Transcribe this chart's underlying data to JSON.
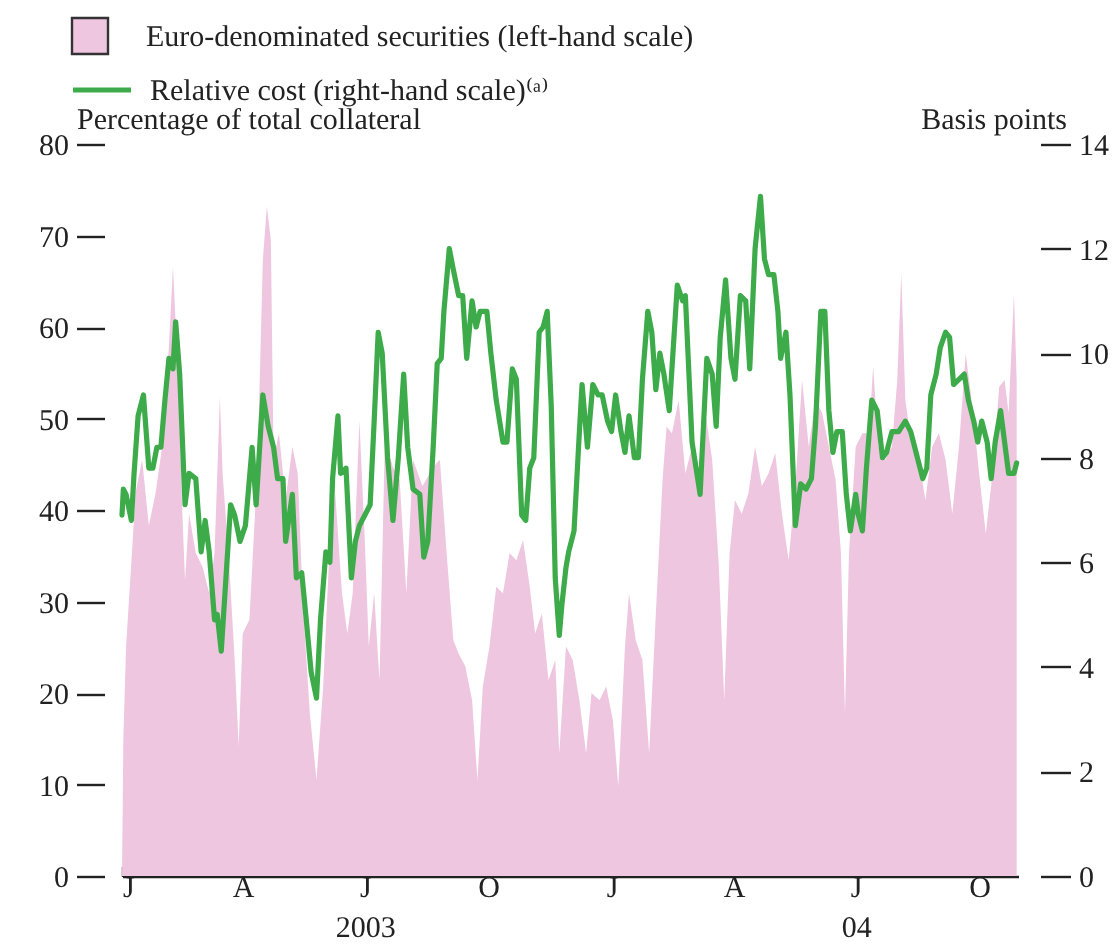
{
  "chart_data": {
    "type": "area",
    "ylabel": "Percentage of total collateral",
    "y2label": "Basis points",
    "legend": "top left",
    "xlim": [
      "2003-01-01",
      "2004-10-30"
    ],
    "xticks": [
      {
        "value": "2003-01-01",
        "label": "J"
      },
      {
        "value": "2003-04-01",
        "label": "A"
      },
      {
        "value": "2003-07-01",
        "label": "J\n2003"
      },
      {
        "value": "2003-10-01",
        "label": "O"
      },
      {
        "value": "2004-01-01",
        "label": "J"
      },
      {
        "value": "2004-04-01",
        "label": "A"
      },
      {
        "value": "2004-07-01",
        "label": "J\n04"
      },
      {
        "value": "2004-10-01",
        "label": "O"
      }
    ],
    "ylim": [
      0,
      80
    ],
    "yticks": [
      0,
      10,
      20,
      30,
      40,
      50,
      60,
      70,
      80
    ],
    "y2lim": [
      0,
      14
    ],
    "y2ticks": [
      0,
      2,
      4,
      6,
      8,
      10,
      12,
      14
    ],
    "series": [
      {
        "name": "Euro-denominated securities (left-hand scale)",
        "color": "#efc6df",
        "x": [
          "2003-01-01",
          "2003-01-02",
          "2003-01-04",
          "2003-01-09",
          "2003-01-11",
          "2003-01-16",
          "2003-01-21",
          "2003-01-26",
          "2003-01-31",
          "2003-02-05",
          "2003-02-08",
          "2003-02-12",
          "2003-02-15",
          "2003-02-17",
          "2003-02-20",
          "2003-02-25",
          "2003-03-02",
          "2003-03-07",
          "2003-03-11",
          "2003-03-15",
          "2003-03-17",
          "2003-03-22",
          "2003-03-26",
          "2003-03-29",
          "2003-04-01",
          "2003-04-06",
          "2003-04-12",
          "2003-04-16",
          "2003-04-19",
          "2003-04-22",
          "2003-04-24",
          "2003-04-28",
          "2003-05-03",
          "2003-05-08",
          "2003-05-12",
          "2003-05-16",
          "2003-05-21",
          "2003-05-26",
          "2003-05-31",
          "2003-06-05",
          "2003-06-09",
          "2003-06-14",
          "2003-06-18",
          "2003-06-22",
          "2003-06-27",
          "2003-07-01",
          "2003-07-04",
          "2003-07-08",
          "2003-07-11",
          "2003-07-12",
          "2003-07-16",
          "2003-07-22",
          "2003-07-27",
          "2003-08-01",
          "2003-08-06",
          "2003-08-13",
          "2003-08-21",
          "2003-08-26",
          "2003-08-31",
          "2003-09-05",
          "2003-09-09",
          "2003-09-14",
          "2003-09-19",
          "2003-09-23",
          "2003-09-27",
          "2003-10-02",
          "2003-10-07",
          "2003-10-12",
          "2003-10-17",
          "2003-10-22",
          "2003-10-27",
          "2003-11-01",
          "2003-11-05",
          "2003-11-10",
          "2003-11-15",
          "2003-11-20",
          "2003-11-23",
          "2003-11-28",
          "2003-12-03",
          "2003-12-08",
          "2003-12-13",
          "2003-12-17",
          "2003-12-23",
          "2003-12-28",
          "2004-01-02",
          "2004-01-06",
          "2004-01-11",
          "2004-01-14",
          "2004-01-19",
          "2004-01-24",
          "2004-01-29",
          "2004-02-03",
          "2004-02-08",
          "2004-02-11",
          "2004-02-15",
          "2004-02-20",
          "2004-02-25",
          "2004-03-01",
          "2004-03-06",
          "2004-03-11",
          "2004-03-16",
          "2004-03-21",
          "2004-03-25",
          "2004-03-29",
          "2004-04-02",
          "2004-04-07",
          "2004-04-12",
          "2004-04-17",
          "2004-04-22",
          "2004-04-27",
          "2004-05-02",
          "2004-05-07",
          "2004-05-12",
          "2004-05-17",
          "2004-05-22",
          "2004-05-27",
          "2004-06-01",
          "2004-06-06",
          "2004-06-11",
          "2004-06-16",
          "2004-06-20",
          "2004-06-23",
          "2004-06-26",
          "2004-07-01",
          "2004-07-06",
          "2004-07-11",
          "2004-07-14",
          "2004-07-18",
          "2004-07-23",
          "2004-07-28",
          "2004-08-01",
          "2004-08-04",
          "2004-08-07",
          "2004-08-12",
          "2004-08-17",
          "2004-08-22",
          "2004-08-27",
          "2004-09-01",
          "2004-09-06",
          "2004-09-11",
          "2004-09-16",
          "2004-09-21",
          "2004-09-26",
          "2004-10-01",
          "2004-10-06",
          "2004-10-11",
          "2004-10-16",
          "2004-10-20",
          "2004-10-23",
          "2004-10-27",
          "2004-10-29"
        ],
        "values": [
          0,
          14.9,
          25.0,
          36.7,
          41.8,
          45.5,
          38.3,
          41.8,
          47.0,
          57.9,
          66.6,
          54.2,
          39.6,
          32.3,
          39.6,
          35.3,
          33.8,
          30.9,
          35.3,
          52.4,
          44.0,
          33.9,
          23.6,
          14.2,
          26.5,
          28.0,
          44.7,
          67.3,
          73.2,
          69.5,
          45.5,
          48.4,
          41.1,
          46.9,
          44.0,
          29.4,
          17.8,
          10.5,
          20.7,
          36.7,
          41.8,
          30.9,
          26.5,
          30.9,
          49.8,
          36.7,
          25.1,
          30.9,
          23.6,
          21.4,
          47.7,
          44.7,
          43.3,
          30.9,
          45.5,
          42.6,
          44.7,
          45.5,
          35.3,
          25.8,
          24.3,
          22.9,
          19.2,
          10.5,
          20.7,
          25.1,
          31.6,
          30.9,
          35.3,
          34.5,
          36.7,
          31.6,
          26.5,
          28.7,
          21.4,
          23.6,
          13.4,
          25.1,
          23.6,
          19.2,
          13.4,
          20.0,
          19.2,
          20.7,
          17.0,
          9.8,
          25.1,
          30.9,
          25.8,
          23.6,
          13.4,
          28.7,
          43.3,
          49.1,
          48.4,
          52.0,
          44.0,
          46.9,
          42.6,
          50.6,
          45.5,
          33.8,
          19.2,
          35.3,
          41.1,
          39.6,
          41.8,
          46.9,
          42.6,
          44.0,
          46.2,
          39.6,
          34.5,
          42.6,
          54.2,
          46.9,
          52.0,
          50.6,
          46.9,
          43.3,
          35.3,
          17.8,
          35.3,
          46.9,
          48.4,
          48.4,
          55.7,
          46.9,
          45.5,
          46.9,
          54.2,
          65.9,
          52.0,
          46.9,
          45.5,
          41.1,
          46.9,
          48.4,
          45.5,
          39.6,
          46.9,
          57.1,
          51.3,
          44.0,
          37.4,
          44.0,
          53.5,
          54.2,
          50.6,
          63.7,
          54.2
        ]
      },
      {
        "name": "Relative cost (right-hand scale)⁽ᵃ⁾",
        "type": "line",
        "axis": "y2",
        "color": "#3dab4a",
        "x": [
          "2003-01-01",
          "2003-01-02",
          "2003-01-04",
          "2003-01-08",
          "2003-01-10",
          "2003-01-13",
          "2003-01-17",
          "2003-01-21",
          "2003-01-24",
          "2003-01-27",
          "2003-01-30",
          "2003-02-02",
          "2003-02-05",
          "2003-02-08",
          "2003-02-10",
          "2003-02-13",
          "2003-02-17",
          "2003-02-20",
          "2003-02-25",
          "2003-03-01",
          "2003-03-04",
          "2003-03-07",
          "2003-03-11",
          "2003-03-13",
          "2003-03-16",
          "2003-03-20",
          "2003-03-23",
          "2003-03-26",
          "2003-03-30",
          "2003-04-03",
          "2003-04-08",
          "2003-04-11",
          "2003-04-16",
          "2003-04-20",
          "2003-04-24",
          "2003-04-27",
          "2003-05-01",
          "2003-05-03",
          "2003-05-08",
          "2003-05-11",
          "2003-05-15",
          "2003-05-18",
          "2003-05-22",
          "2003-05-26",
          "2003-05-29",
          "2003-06-02",
          "2003-06-05",
          "2003-06-07",
          "2003-06-11",
          "2003-06-13",
          "2003-06-17",
          "2003-06-21",
          "2003-06-24",
          "2003-06-27",
          "2003-07-01",
          "2003-07-05",
          "2003-07-08",
          "2003-07-11",
          "2003-07-14",
          "2003-07-18",
          "2003-07-22",
          "2003-07-26",
          "2003-07-30",
          "2003-08-02",
          "2003-08-06",
          "2003-08-11",
          "2003-08-14",
          "2003-08-17",
          "2003-08-21",
          "2003-08-24",
          "2003-08-27",
          "2003-08-29",
          "2003-09-02",
          "2003-09-05",
          "2003-09-09",
          "2003-09-12",
          "2003-09-15",
          "2003-09-19",
          "2003-09-22",
          "2003-09-25",
          "2003-09-30",
          "2003-10-03",
          "2003-10-07",
          "2003-10-12",
          "2003-10-15",
          "2003-10-19",
          "2003-10-22",
          "2003-10-26",
          "2003-10-29",
          "2003-11-01",
          "2003-11-04",
          "2003-11-08",
          "2003-11-11",
          "2003-11-14",
          "2003-11-17",
          "2003-11-20",
          "2003-11-23",
          "2003-11-25",
          "2003-11-28",
          "2003-11-30",
          "2003-12-04",
          "2003-12-08",
          "2003-12-10",
          "2003-12-14",
          "2003-12-18",
          "2003-12-22",
          "2003-12-25",
          "2003-12-29",
          "2004-01-01",
          "2004-01-04",
          "2004-01-08",
          "2004-01-11",
          "2004-01-14",
          "2004-01-18",
          "2004-01-21",
          "2004-01-24",
          "2004-01-28",
          "2004-01-31",
          "2004-02-03",
          "2004-02-06",
          "2004-02-09",
          "2004-02-13",
          "2004-02-16",
          "2004-02-19",
          "2004-02-23",
          "2004-02-25",
          "2004-03-01",
          "2004-03-07",
          "2004-03-12",
          "2004-03-16",
          "2004-03-19",
          "2004-03-22",
          "2004-03-26",
          "2004-03-30",
          "2004-04-02",
          "2004-04-06",
          "2004-04-10",
          "2004-04-13",
          "2004-04-17",
          "2004-04-21",
          "2004-04-24",
          "2004-04-27",
          "2004-05-01",
          "2004-05-04",
          "2004-05-06",
          "2004-05-10",
          "2004-05-13",
          "2004-05-17",
          "2004-05-21",
          "2004-05-25",
          "2004-05-29",
          "2004-06-01",
          "2004-06-05",
          "2004-06-08",
          "2004-06-11",
          "2004-06-14",
          "2004-06-17",
          "2004-06-21",
          "2004-06-24",
          "2004-06-27",
          "2004-07-01",
          "2004-07-03",
          "2004-07-06",
          "2004-07-09",
          "2004-07-13",
          "2004-07-17",
          "2004-07-21",
          "2004-07-24",
          "2004-07-28",
          "2004-08-02",
          "2004-08-07",
          "2004-08-11",
          "2004-08-15",
          "2004-08-20",
          "2004-08-23",
          "2004-08-26",
          "2004-08-30",
          "2004-09-02",
          "2004-09-06",
          "2004-09-09",
          "2004-09-12",
          "2004-09-16",
          "2004-09-20",
          "2004-09-23",
          "2004-09-27",
          "2004-09-30",
          "2004-10-03",
          "2004-10-07",
          "2004-10-10",
          "2004-10-13",
          "2004-10-17",
          "2004-10-20",
          "2004-10-23",
          "2004-10-27",
          "2004-10-29"
        ],
        "values": [
          6.9,
          7.4,
          7.3,
          6.8,
          7.7,
          8.8,
          9.2,
          7.8,
          7.8,
          8.2,
          8.2,
          9.1,
          9.9,
          9.7,
          10.6,
          9.6,
          7.1,
          7.7,
          7.6,
          6.2,
          6.8,
          6.2,
          4.9,
          5.0,
          4.3,
          5.9,
          7.1,
          6.9,
          6.4,
          6.7,
          8.2,
          7.1,
          9.2,
          8.6,
          8.2,
          7.6,
          7.6,
          6.4,
          7.3,
          5.7,
          5.8,
          5.0,
          3.9,
          3.4,
          4.9,
          6.2,
          6.0,
          7.6,
          8.8,
          7.7,
          7.8,
          5.7,
          6.4,
          6.7,
          6.9,
          7.1,
          8.7,
          10.4,
          10.0,
          8.0,
          6.8,
          8.0,
          9.6,
          8.2,
          7.4,
          7.3,
          6.1,
          6.4,
          8.2,
          9.8,
          9.9,
          10.8,
          12.0,
          11.6,
          11.1,
          11.1,
          9.9,
          11.0,
          10.5,
          10.8,
          10.8,
          10.0,
          9.1,
          8.3,
          8.3,
          9.7,
          9.5,
          6.9,
          6.8,
          7.8,
          8.0,
          10.4,
          10.5,
          10.8,
          9.0,
          5.7,
          4.6,
          5.2,
          5.9,
          6.2,
          6.6,
          8.5,
          9.4,
          8.2,
          9.4,
          9.2,
          9.2,
          8.7,
          8.5,
          9.2,
          8.5,
          8.1,
          8.8,
          8.0,
          8.0,
          9.5,
          10.8,
          10.4,
          9.3,
          10.0,
          9.6,
          8.9,
          10.1,
          11.3,
          11.0,
          11.1,
          8.3,
          7.3,
          9.9,
          9.6,
          8.6,
          10.3,
          11.4,
          9.9,
          9.5,
          11.1,
          11.0,
          9.7,
          12.0,
          13.0,
          11.8,
          11.5,
          11.5,
          10.8,
          9.9,
          10.4,
          9.2,
          6.7,
          7.5,
          7.4,
          7.6,
          8.6,
          10.8,
          10.8,
          8.9,
          8.1,
          8.5,
          8.5,
          7.3,
          6.6,
          7.3,
          6.9,
          6.6,
          7.8,
          9.1,
          8.9,
          8.0,
          8.1,
          8.5,
          8.5,
          8.7,
          8.5,
          8.1,
          7.6,
          7.8,
          9.2,
          9.6,
          10.1,
          10.4,
          10.3,
          9.4,
          9.5,
          9.6,
          9.1,
          8.7,
          8.3,
          8.7,
          8.3,
          7.6,
          8.3,
          8.9,
          8.3,
          7.7,
          7.7,
          7.9
        ]
      }
    ]
  }
}
